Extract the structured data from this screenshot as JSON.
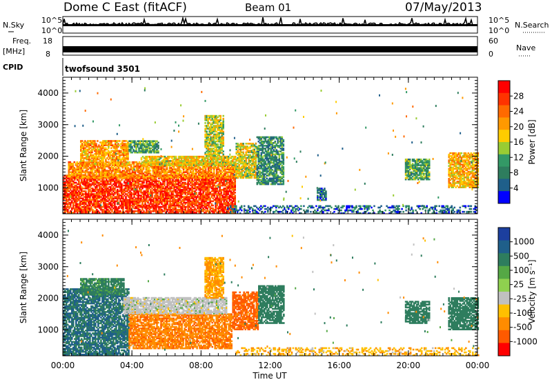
{
  "header": {
    "station": "Dome C East (fitACF)",
    "beam": "Beam 01",
    "date": "07/May/2013"
  },
  "top_panels": {
    "nsky_label": "N.Sky",
    "nsky_scale_top": "10^5",
    "nsky_scale_bottom": "10^0",
    "nsearch_label": "N.Search",
    "freq_label": "Freq.",
    "freq_unit": "[MHz]",
    "freq_ticks": [
      "18",
      "8"
    ],
    "nave_ticks": [
      "60",
      "0"
    ],
    "nave_label": "Nave",
    "cpid_label": "CPID",
    "cpid_value": "twofsound 3501"
  },
  "chart_data": [
    {
      "type": "heatmap",
      "panel": "power",
      "ylabel": "Slant Range [km]",
      "ylim": [
        180,
        4500
      ],
      "y_ticks": [
        1000,
        2000,
        3000,
        4000
      ],
      "x_ticks": [
        "00:00",
        "04:00",
        "08:00",
        "12:00",
        "16:00",
        "20:00",
        "00:00"
      ],
      "xlim_hours": [
        0,
        24
      ],
      "colorbar": {
        "label": "Power [dB]",
        "ticks": [
          "28",
          "24",
          "20",
          "16",
          "12",
          "8",
          "4"
        ],
        "colors": [
          "#ff0000",
          "#ff3300",
          "#ff6a00",
          "#ff9900",
          "#ffcc00",
          "#99cc33",
          "#339966",
          "#2e7d5e",
          "#1f5f8a",
          "#0000ff"
        ]
      },
      "regions": [
        {
          "t0": 0.0,
          "t1": 10.0,
          "r0": 200,
          "r1": 1400,
          "level": 27
        },
        {
          "t0": 0.3,
          "t1": 10.0,
          "r0": 1300,
          "r1": 1800,
          "level": 22
        },
        {
          "t0": 4.5,
          "t1": 10.0,
          "r0": 1700,
          "r1": 2000,
          "level": 18
        },
        {
          "t0": 1.0,
          "t1": 3.8,
          "r0": 1700,
          "r1": 2500,
          "level": 21
        },
        {
          "t0": 3.8,
          "t1": 5.5,
          "r0": 2100,
          "r1": 2500,
          "level": 12
        },
        {
          "t0": 8.2,
          "t1": 9.3,
          "r0": 2000,
          "r1": 3300,
          "level": 16
        },
        {
          "t0": 10.0,
          "t1": 11.2,
          "r0": 1300,
          "r1": 2400,
          "level": 17
        },
        {
          "t0": 11.2,
          "t1": 12.8,
          "r0": 1100,
          "r1": 2600,
          "level": 10
        },
        {
          "t0": 14.7,
          "t1": 15.2,
          "r0": 600,
          "r1": 1000,
          "level": 8
        },
        {
          "t0": 19.8,
          "t1": 21.2,
          "r0": 1250,
          "r1": 1900,
          "level": 12
        },
        {
          "t0": 22.3,
          "t1": 24.0,
          "r0": 1000,
          "r1": 2100,
          "level": 20
        },
        {
          "t0": 9.5,
          "t1": 24.0,
          "r0": 180,
          "r1": 420,
          "level": 7
        }
      ]
    },
    {
      "type": "heatmap",
      "panel": "velocity",
      "ylabel": "Slant Range [km]",
      "xlabel": "Time UT",
      "ylim": [
        180,
        4500
      ],
      "y_ticks": [
        1000,
        2000,
        3000,
        4000
      ],
      "x_ticks": [
        "00:00",
        "04:00",
        "08:00",
        "12:00",
        "16:00",
        "20:00",
        "00:00"
      ],
      "xlim_hours": [
        0,
        24
      ],
      "colorbar": {
        "label": "Velocity [m s⁻¹]",
        "ticks": [
          "1000",
          "500",
          "100",
          "25",
          "-25",
          "-100",
          "-500",
          "-1000"
        ],
        "colors": [
          "#1c3f9e",
          "#1f5f8a",
          "#2e7d5e",
          "#55a845",
          "#8fd14f",
          "#c0c0c0",
          "#ffc000",
          "#ff8c00",
          "#ff5a00",
          "#ff0000"
        ]
      },
      "regions": [
        {
          "t0": 0.0,
          "t1": 3.8,
          "r0": 200,
          "r1": 2300,
          "level": 300
        },
        {
          "t0": 3.8,
          "t1": 9.8,
          "r0": 400,
          "r1": 1500,
          "level": -250
        },
        {
          "t0": 3.5,
          "t1": 9.5,
          "r0": 1500,
          "r1": 2000,
          "level": 0
        },
        {
          "t0": 1.0,
          "t1": 3.5,
          "r0": 2100,
          "r1": 2600,
          "level": 80
        },
        {
          "t0": 8.2,
          "t1": 9.3,
          "r0": 2000,
          "r1": 3300,
          "level": -60
        },
        {
          "t0": 9.8,
          "t1": 11.3,
          "r0": 1000,
          "r1": 2200,
          "level": -400
        },
        {
          "t0": 11.3,
          "t1": 12.8,
          "r0": 1200,
          "r1": 2400,
          "level": 120
        },
        {
          "t0": 19.8,
          "t1": 21.2,
          "r0": 1200,
          "r1": 1900,
          "level": 150
        },
        {
          "t0": 22.3,
          "t1": 24.0,
          "r0": 1000,
          "r1": 2000,
          "level": 200
        },
        {
          "t0": 10.0,
          "t1": 24.0,
          "r0": 180,
          "r1": 420,
          "level": -50
        }
      ]
    }
  ]
}
